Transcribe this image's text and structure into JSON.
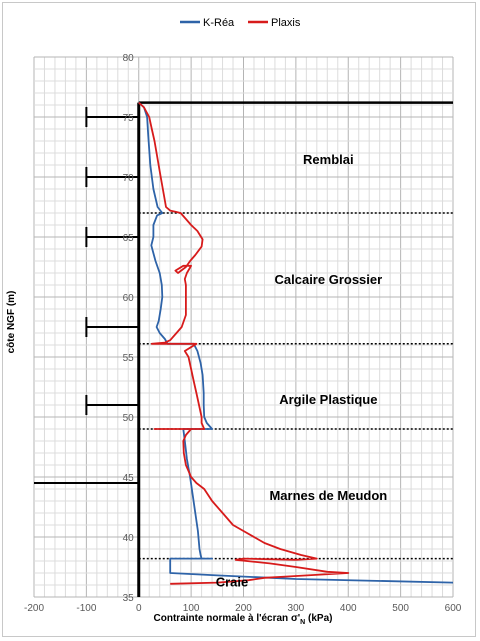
{
  "chart_data": {
    "type": "line",
    "xlabel": "Contrainte normale à l'écran σ'N (kPa)",
    "xlabel_main": "Contrainte normale à l'écran σ'",
    "xlabel_sub": "N",
    "xlabel_unit": " (kPa)",
    "ylabel": "côte NGF (m)",
    "xlim": [
      -200,
      600
    ],
    "ylim": [
      35,
      80
    ],
    "xticks": [
      "-200",
      "-100",
      "0",
      "100",
      "200",
      "300",
      "400",
      "500",
      "600"
    ],
    "yticks": [
      "35",
      "40",
      "45",
      "50",
      "55",
      "60",
      "65",
      "70",
      "75",
      "80"
    ],
    "grid": true,
    "legend_position": "top",
    "series": [
      {
        "name": "K-Réa",
        "color": "#2e63a8",
        "points": [
          [
            0,
            76.2
          ],
          [
            10,
            75.8
          ],
          [
            16,
            75
          ],
          [
            18,
            73.5
          ],
          [
            22,
            71
          ],
          [
            28,
            69
          ],
          [
            36,
            67.5
          ],
          [
            45,
            67
          ],
          [
            35,
            66.8
          ],
          [
            28,
            66
          ],
          [
            28,
            65
          ],
          [
            24,
            64.3
          ],
          [
            32,
            63
          ],
          [
            40,
            62
          ],
          [
            44,
            61
          ],
          [
            45,
            60
          ],
          [
            42,
            59
          ],
          [
            38,
            58
          ],
          [
            34,
            57.5
          ],
          [
            40,
            57
          ],
          [
            50,
            56.5
          ],
          [
            55,
            56.1
          ],
          [
            105,
            56.1
          ],
          [
            112,
            55.5
          ],
          [
            118,
            54.5
          ],
          [
            122,
            53.5
          ],
          [
            124,
            52
          ],
          [
            124,
            51
          ],
          [
            125,
            50
          ],
          [
            130,
            49.5
          ],
          [
            140,
            49
          ],
          [
            85,
            49
          ],
          [
            88,
            48
          ],
          [
            92,
            46.5
          ],
          [
            98,
            45
          ],
          [
            103,
            43.5
          ],
          [
            108,
            42
          ],
          [
            113,
            40.5
          ],
          [
            116,
            39
          ],
          [
            118,
            38.5
          ],
          [
            120,
            38.2
          ],
          [
            140,
            38.2
          ],
          [
            60,
            38.2
          ],
          [
            60,
            37.5
          ],
          [
            60,
            37
          ],
          [
            150,
            36.8
          ],
          [
            300,
            36.5
          ],
          [
            600,
            36.2
          ]
        ]
      },
      {
        "name": "Plaxis",
        "color": "#d71b1b",
        "points": [
          [
            0,
            76.2
          ],
          [
            10,
            75.8
          ],
          [
            20,
            75
          ],
          [
            25,
            74
          ],
          [
            30,
            73
          ],
          [
            36,
            71.5
          ],
          [
            42,
            70
          ],
          [
            48,
            68.5
          ],
          [
            52,
            67.5
          ],
          [
            60,
            67.2
          ],
          [
            70,
            67.1
          ],
          [
            80,
            67
          ],
          [
            90,
            66.5
          ],
          [
            100,
            66
          ],
          [
            112,
            65.5
          ],
          [
            122,
            64.8
          ],
          [
            120,
            64.2
          ],
          [
            108,
            63.5
          ],
          [
            98,
            63
          ],
          [
            90,
            62.5
          ],
          [
            75,
            62
          ],
          [
            70,
            62.2
          ],
          [
            85,
            62.6
          ],
          [
            100,
            62.6
          ],
          [
            92,
            62
          ],
          [
            88,
            61.5
          ],
          [
            90,
            61
          ],
          [
            90,
            60
          ],
          [
            90,
            59
          ],
          [
            90,
            58.5
          ],
          [
            86,
            58
          ],
          [
            82,
            57.5
          ],
          [
            72,
            57
          ],
          [
            68,
            56.8
          ],
          [
            60,
            56.4
          ],
          [
            50,
            56.2
          ],
          [
            25,
            56.1
          ],
          [
            80,
            56.1
          ],
          [
            110,
            56.1
          ],
          [
            88,
            55.5
          ],
          [
            95,
            55
          ],
          [
            100,
            54
          ],
          [
            105,
            53
          ],
          [
            110,
            52
          ],
          [
            115,
            51
          ],
          [
            120,
            50
          ],
          [
            120,
            49.5
          ],
          [
            125,
            49
          ],
          [
            70,
            49
          ],
          [
            30,
            49
          ],
          [
            100,
            49
          ],
          [
            90,
            48.5
          ],
          [
            85,
            48
          ],
          [
            86,
            47
          ],
          [
            90,
            46
          ],
          [
            95,
            45.5
          ],
          [
            100,
            45
          ],
          [
            110,
            44.5
          ],
          [
            125,
            44
          ],
          [
            140,
            43
          ],
          [
            160,
            42
          ],
          [
            180,
            41
          ],
          [
            200,
            40.5
          ],
          [
            240,
            39.5
          ],
          [
            270,
            39
          ],
          [
            310,
            38.5
          ],
          [
            340,
            38.2
          ],
          [
            300,
            38.1
          ],
          [
            200,
            38.2
          ],
          [
            185,
            38.1
          ],
          [
            250,
            37.8
          ],
          [
            300,
            37.5
          ],
          [
            360,
            37.1
          ],
          [
            400,
            37
          ],
          [
            280,
            36.7
          ],
          [
            240,
            36.6
          ],
          [
            210,
            36.4
          ],
          [
            150,
            36.2
          ],
          [
            60,
            36.1
          ]
        ]
      }
    ],
    "anchors": [
      {
        "x0": -100,
        "x1": 0,
        "y": 75
      },
      {
        "x0": -100,
        "x1": 0,
        "y": 70
      },
      {
        "x0": -100,
        "x1": 0,
        "y": 65
      },
      {
        "x0": -100,
        "x1": 0,
        "y": 57.5
      },
      {
        "x0": -100,
        "x1": 0,
        "y": 51
      },
      {
        "x0": -200,
        "x1": 0,
        "y": 44.5
      }
    ],
    "ground_level": {
      "y": 76.2,
      "x0": 0,
      "x1": 600
    },
    "wall": {
      "x": 0,
      "y_top": 76.2,
      "y_bottom": 35
    },
    "layer_boundaries": [
      67,
      56.1,
      49,
      38.2
    ],
    "layers": [
      {
        "name": "Remblai",
        "x": 362,
        "y": 71.5
      },
      {
        "name": "Calcaire Grossier",
        "x": 362,
        "y": 61.5
      },
      {
        "name": "Argile Plastique",
        "x": 362,
        "y": 51.5
      },
      {
        "name": "Marnes de Meudon",
        "x": 362,
        "y": 43.5
      },
      {
        "name": "Craie",
        "x": 178,
        "y": 36.3
      }
    ]
  }
}
